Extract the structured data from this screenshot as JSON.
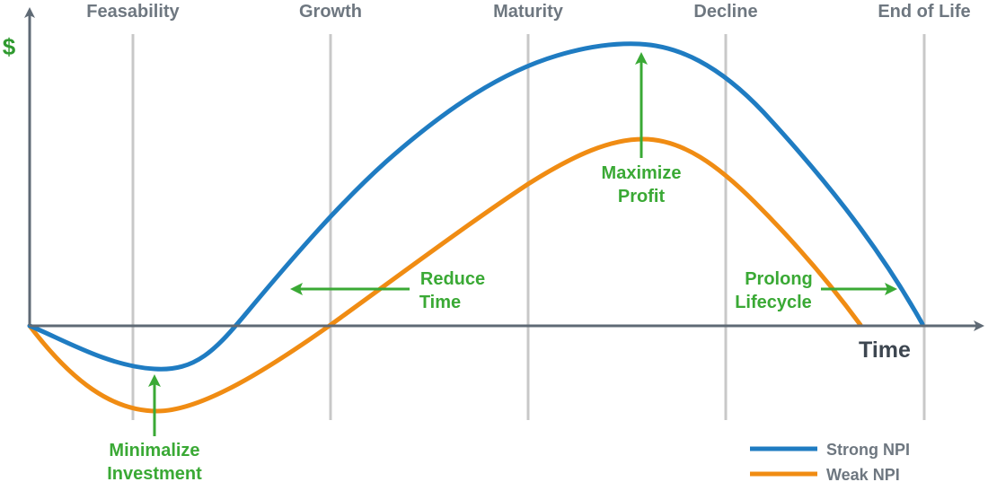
{
  "y_axis_label": "$",
  "x_axis_label": "Time",
  "phases": [
    "Feasability",
    "Growth",
    "Maturity",
    "Decline",
    "End of Life"
  ],
  "callouts": {
    "minimalize": [
      "Minimalize",
      "Investment"
    ],
    "reduce": [
      "Reduce",
      "Time"
    ],
    "maximize": [
      "Maximize",
      "Profit"
    ],
    "prolong": [
      "Prolong",
      "Lifecycle"
    ]
  },
  "legend": {
    "strong": "Strong NPI",
    "weak": "Weak NPI"
  },
  "colors": {
    "strong": "#1f7cc2",
    "weak": "#f08c13",
    "callout": "#3aa935",
    "axis": "#5f6a75",
    "gridline": "#c8c8c8",
    "phase_text": "#6e7780",
    "dollar": "#2f9a2f",
    "time_text": "#3d4650"
  }
}
